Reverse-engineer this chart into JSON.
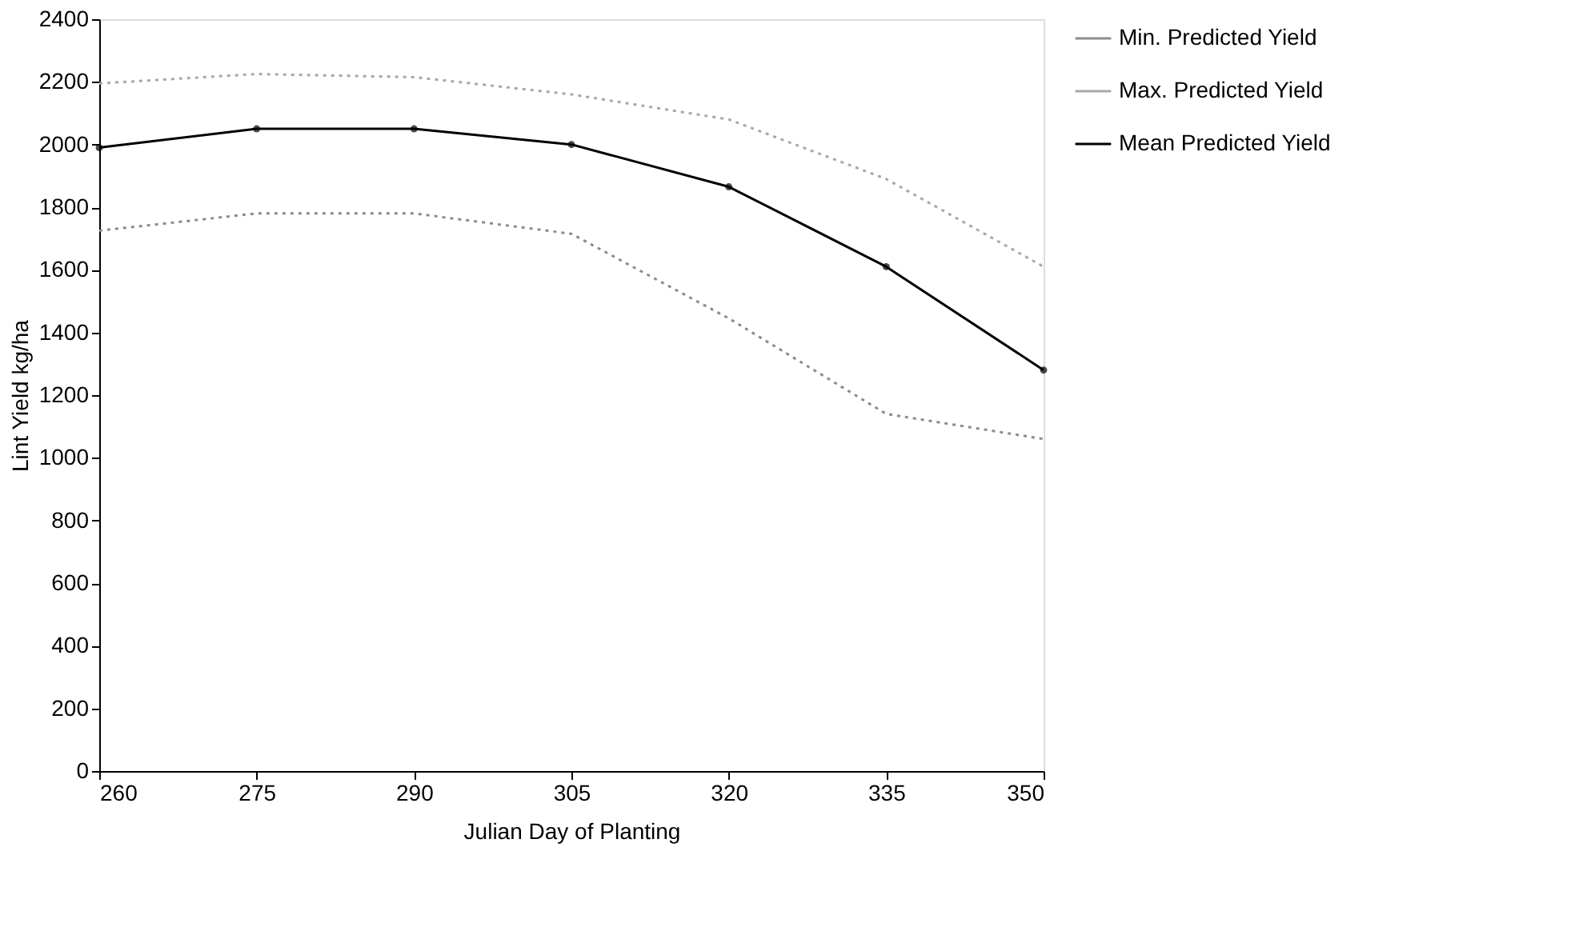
{
  "chart_data": {
    "type": "line",
    "xlabel": "Julian Day of Planting",
    "ylabel": "Lint Yield kg/ha",
    "x": [
      260,
      275,
      290,
      305,
      320,
      335,
      350
    ],
    "xlim": [
      260,
      350
    ],
    "xticks": [
      260,
      275,
      290,
      305,
      320,
      335,
      350
    ],
    "ylim": [
      0,
      2400
    ],
    "yticks": [
      0,
      200,
      400,
      600,
      800,
      1000,
      1200,
      1400,
      1600,
      1800,
      2000,
      2200,
      2400
    ],
    "grid": false,
    "legend": "right",
    "series": [
      {
        "name": "Min. Predicted Yield",
        "color": "#8c8c8c",
        "line_style": "dotted",
        "marker": "none",
        "values": [
          1725,
          1780,
          1780,
          1715,
          1445,
          1140,
          1060
        ]
      },
      {
        "name": "Max. Predicted Yield",
        "color": "#a8a8a8",
        "line_style": "dotted",
        "marker": "none",
        "values": [
          2195,
          2225,
          2215,
          2160,
          2080,
          1890,
          1610
        ]
      },
      {
        "name": "Mean Predicted Yield",
        "color": "#000000",
        "line_style": "solid",
        "marker": "circle",
        "values": [
          1990,
          2050,
          2050,
          2000,
          1865,
          1610,
          1280
        ]
      }
    ]
  }
}
